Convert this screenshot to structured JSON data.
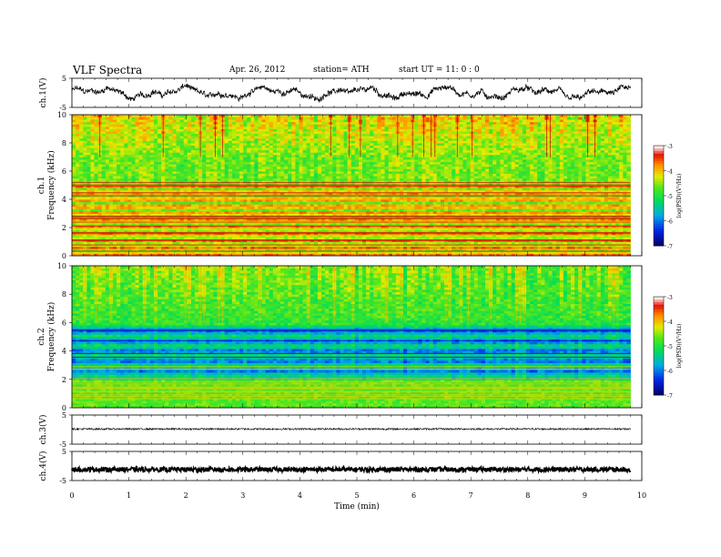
{
  "header": {
    "title": "VLF  Spectra",
    "date": "Apr. 26, 2012",
    "station": "station= ATH",
    "start": "start  UT  =    11: 0  : 0"
  },
  "chart_data": [
    {
      "type": "line",
      "panel": "ch1-waveform",
      "ylabel": "ch.1(V)",
      "ylim": [
        -5,
        5
      ],
      "yticks": [
        "5",
        "-5"
      ],
      "xlim": [
        0,
        10
      ],
      "description_series": "noisy voltage trace oscillating roughly between -3 and 4 V"
    },
    {
      "type": "heatmap",
      "panel": "ch1-spectrogram",
      "ylabel_top": "ch.1",
      "ylabel": "Frequency  (kHz)",
      "ylim": [
        0,
        10
      ],
      "yticks": [
        "0",
        "2",
        "4",
        "6",
        "8",
        "10"
      ],
      "xlim": [
        0,
        10
      ],
      "colorbar": {
        "label": "log(PSD)(V²/Hz)",
        "range": [
          -7,
          -3
        ],
        "ticks": [
          "-3",
          "-4",
          "-5",
          "-6",
          "-7"
        ]
      }
    },
    {
      "type": "heatmap",
      "panel": "ch2-spectrogram",
      "ylabel_top": "ch.2",
      "ylabel": "Frequency  (kHz)",
      "ylim": [
        0,
        10
      ],
      "yticks": [
        "0",
        "2",
        "4",
        "6",
        "8",
        "10"
      ],
      "xlim": [
        0,
        10
      ],
      "colorbar": {
        "label": "log(PSD)(V²/Hz)",
        "range": [
          -7,
          -3
        ],
        "ticks": [
          "-3",
          "-4",
          "-5",
          "-6",
          "-7"
        ]
      }
    },
    {
      "type": "line",
      "panel": "ch3-waveform",
      "ylabel": "ch.3(V)",
      "ylim": [
        -5,
        5
      ],
      "yticks": [
        "5",
        "-5"
      ],
      "xlim": [
        0,
        10
      ]
    },
    {
      "type": "line",
      "panel": "ch4-waveform",
      "ylabel": "ch.4(V)",
      "ylim": [
        -5,
        5
      ],
      "yticks": [
        "5",
        "-5"
      ],
      "xlim": [
        0,
        10
      ]
    }
  ],
  "xaxis": {
    "label": "Time  (min)",
    "ticks": [
      "0",
      "1",
      "2",
      "3",
      "4",
      "5",
      "6",
      "7",
      "8",
      "9",
      "10"
    ],
    "data_end": 9.8
  }
}
